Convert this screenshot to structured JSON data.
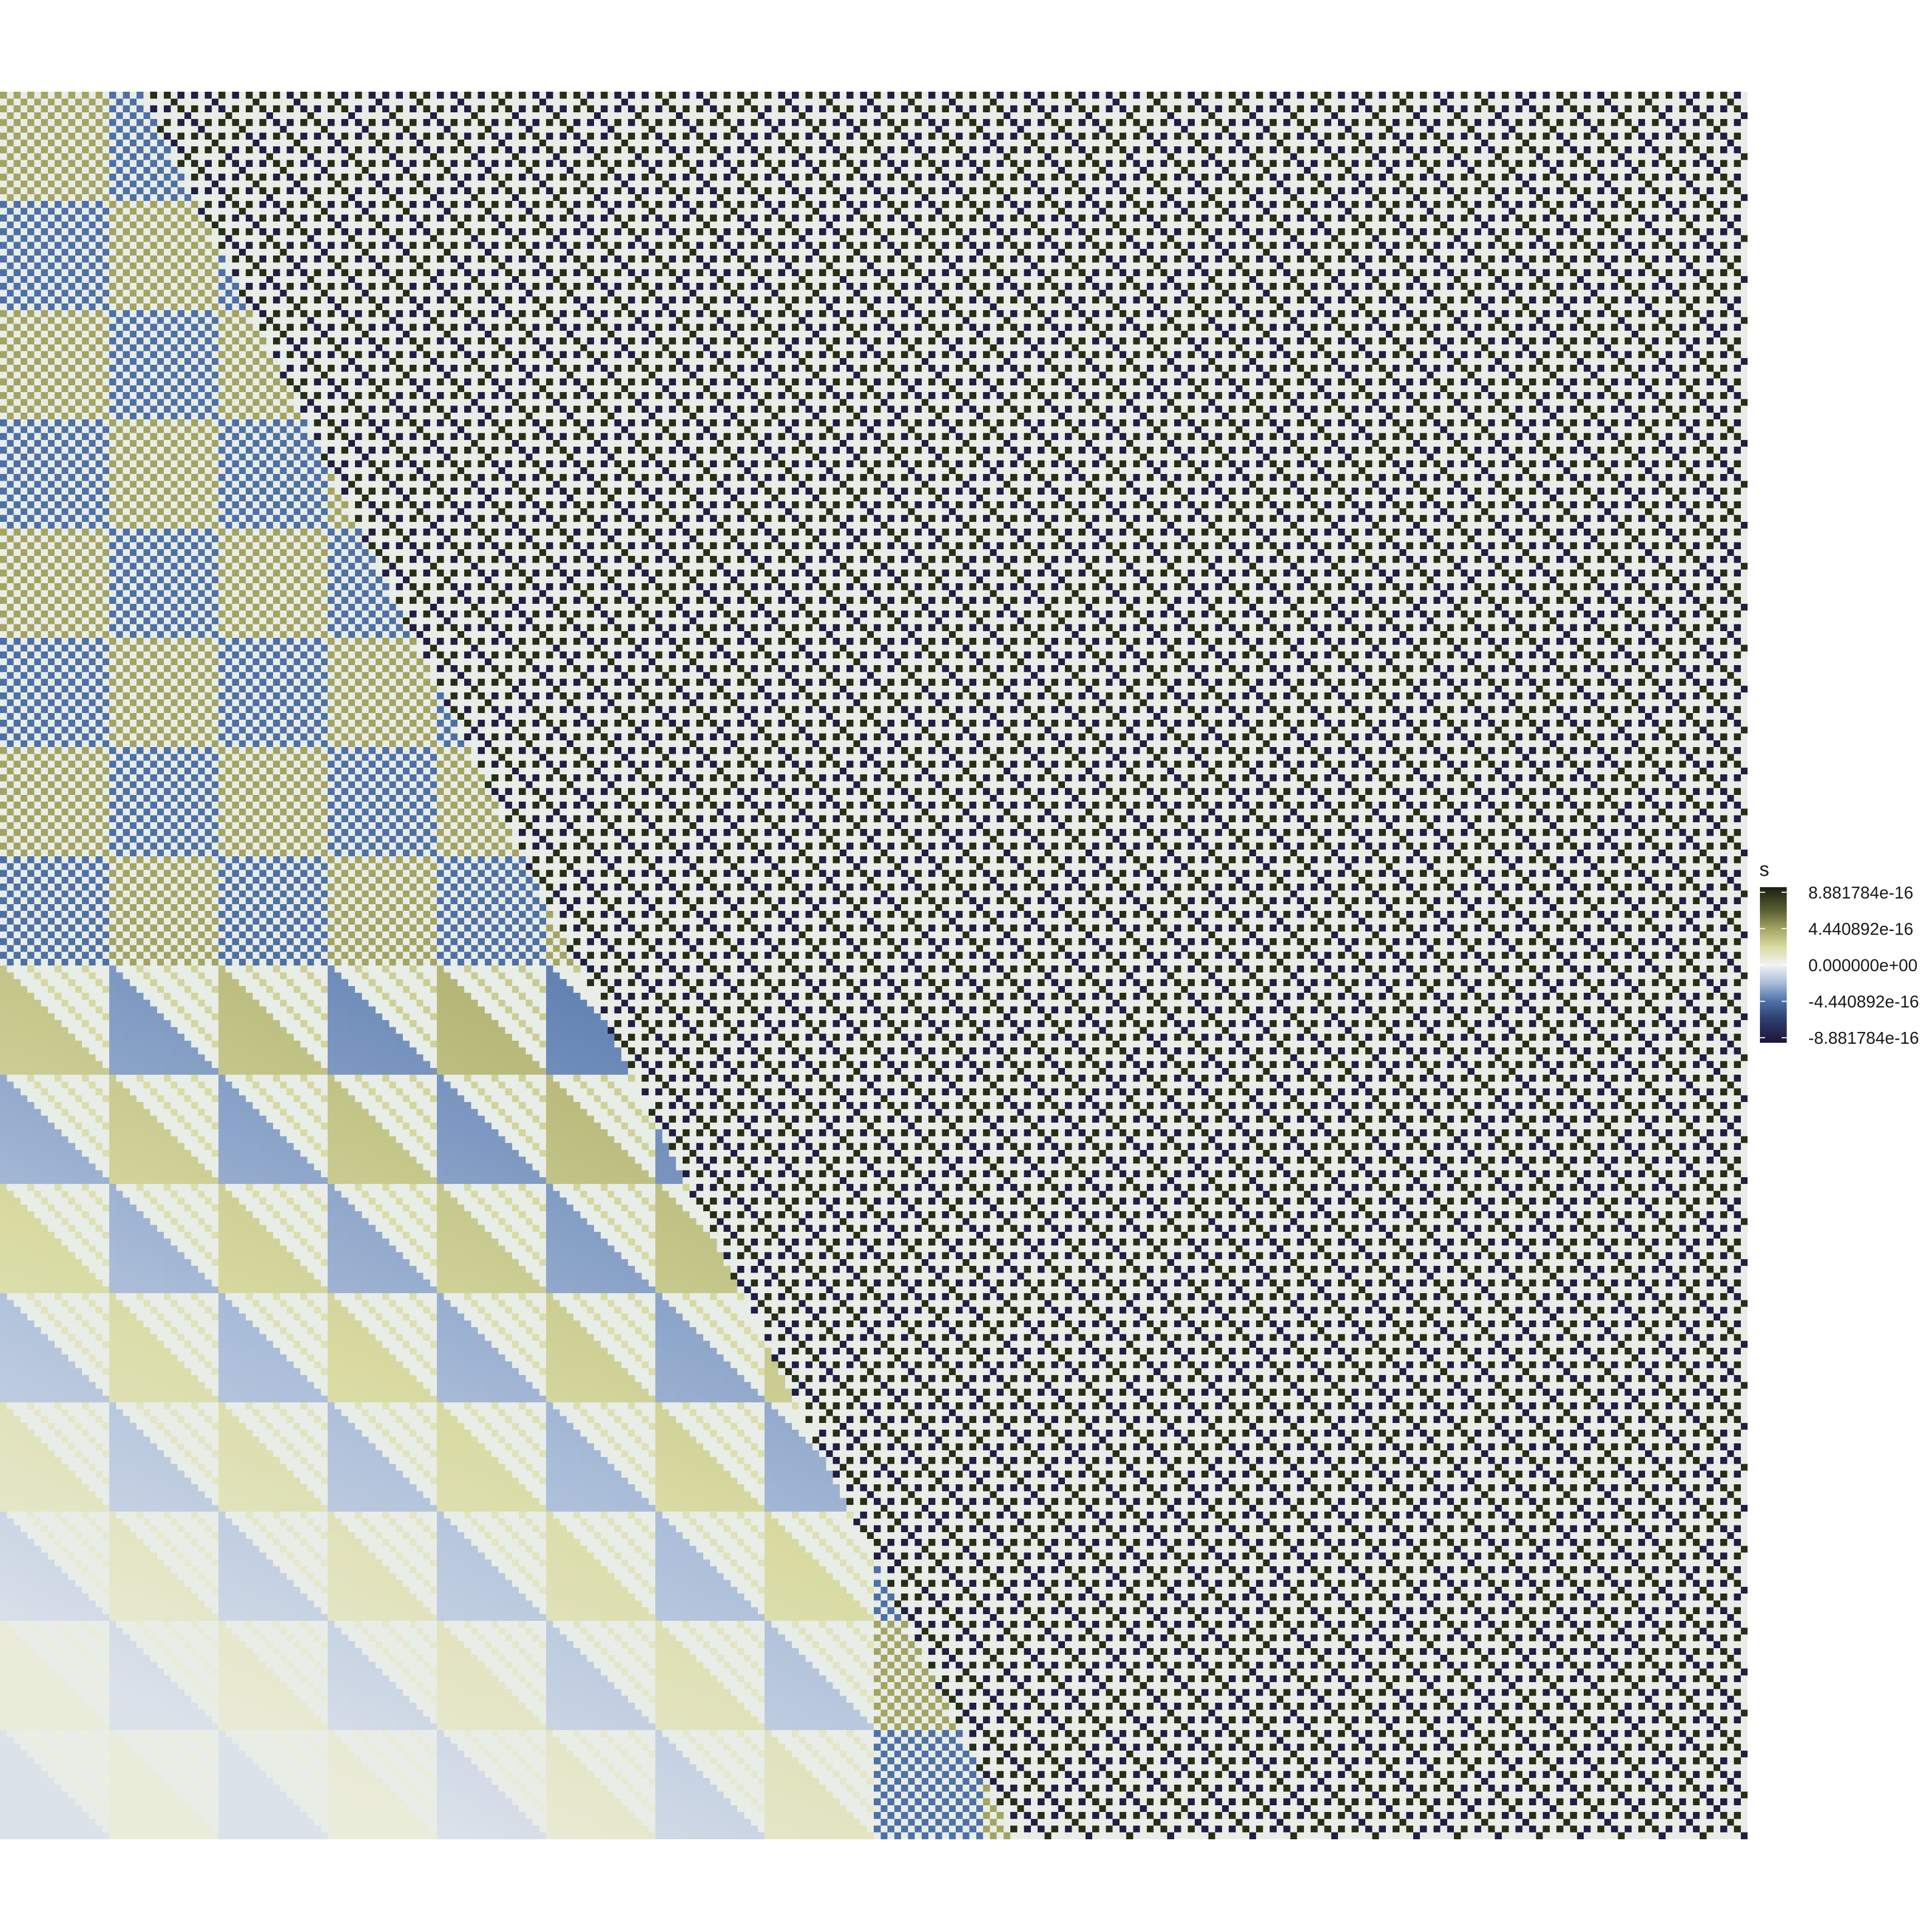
{
  "chart_data": {
    "type": "heatmap",
    "title": "",
    "xlabel": "",
    "ylabel": "",
    "grid": false,
    "axes_visible": false,
    "panel_background": "#e9ede8",
    "legend": {
      "title": "s",
      "placement": "right",
      "ticks": [
        "8.881784e-16",
        "4.440892e-16",
        "0.000000e+00",
        "-4.440892e-16",
        "-8.881784e-16"
      ],
      "tick_values": [
        8.881784e-16,
        4.440892e-16,
        0,
        -4.440892e-16,
        -8.881784e-16
      ],
      "range": [
        -9.5e-16,
        9.5e-16
      ],
      "colorscale": [
        {
          "value": -9.5e-16,
          "color": "#1c1536"
        },
        {
          "value": -6.5e-16,
          "color": "#2f3f73"
        },
        {
          "value": -4.4e-16,
          "color": "#4e72a8"
        },
        {
          "value": -2.2e-16,
          "color": "#a9bcd8"
        },
        {
          "value": 0,
          "color": "#f2f3f2"
        },
        {
          "value": 2.2e-16,
          "color": "#d9dba3"
        },
        {
          "value": 4.4e-16,
          "color": "#a5a563"
        },
        {
          "value": 6.5e-16,
          "color": "#5f6335"
        },
        {
          "value": 9.5e-16,
          "color": "#18200e"
        }
      ]
    },
    "grid_rows": 256,
    "grid_cols": 256,
    "value_levels": [
      8.881784e-16,
      -8.881784e-16,
      6.661338e-16,
      -6.661338e-16,
      4.440892e-16,
      -4.440892e-16,
      3.330669e-16,
      -3.330669e-16,
      2.220446e-16,
      -2.220446e-16,
      1.110223e-16,
      -1.110223e-16,
      5.551115e-17,
      -5.551115e-17,
      0
    ]
  }
}
